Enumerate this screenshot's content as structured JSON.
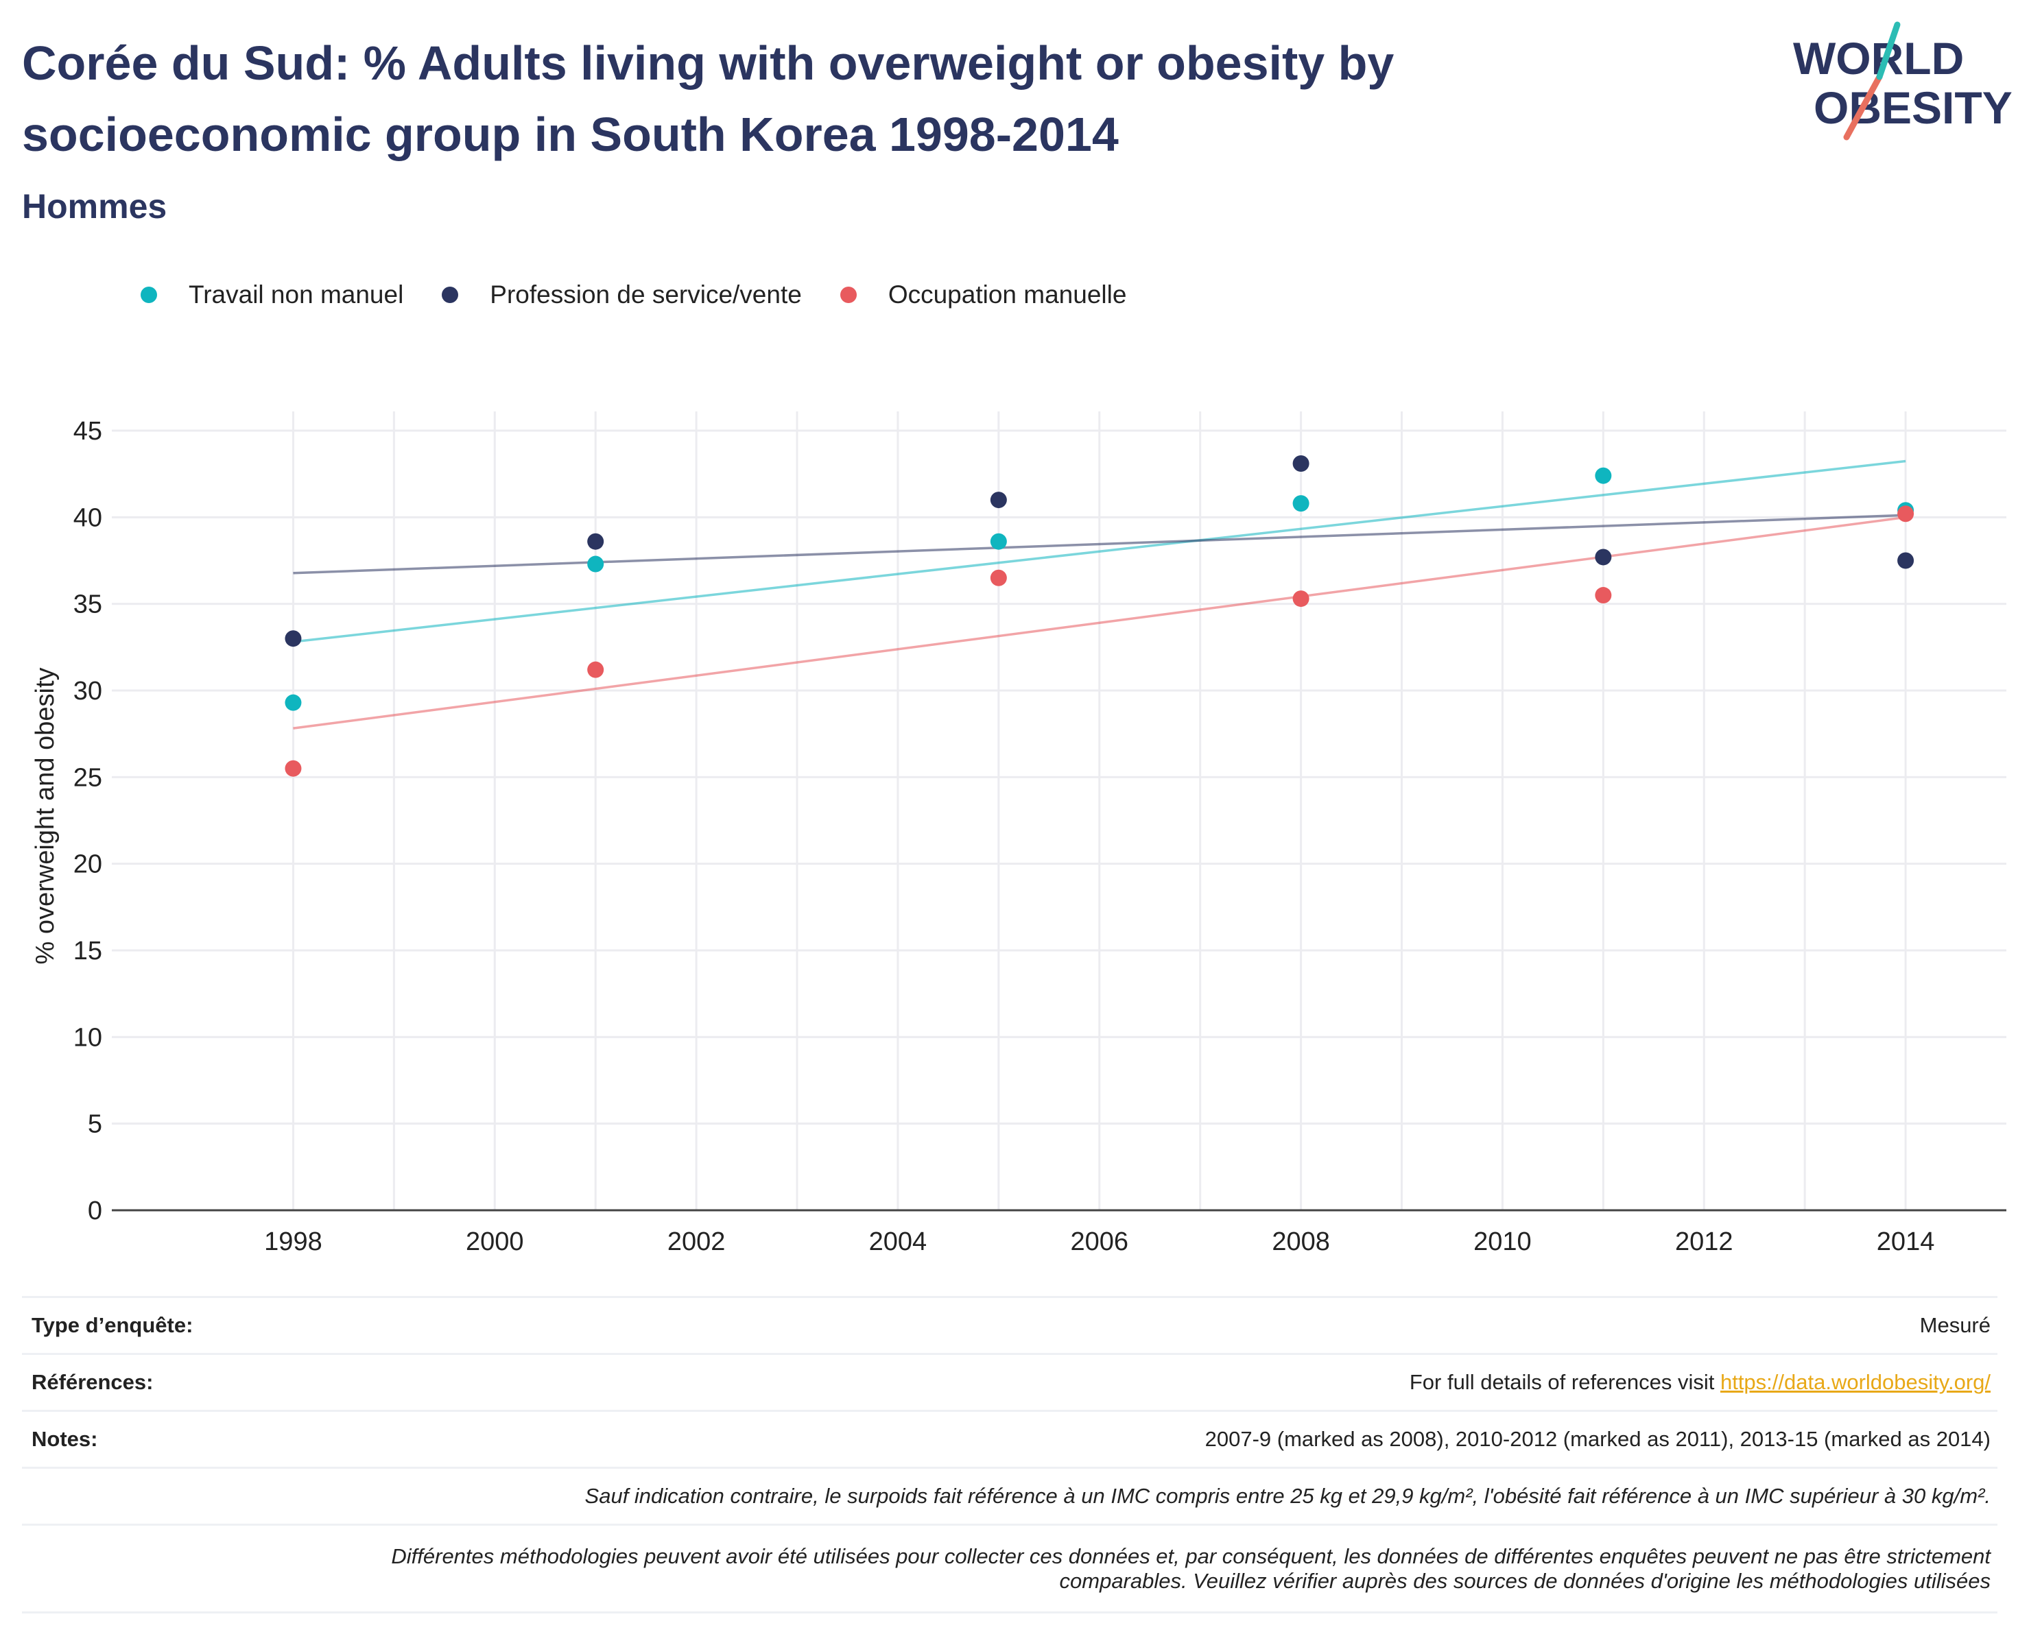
{
  "title": "Corée du Sud: % Adults living with overweight or obesity by socioeconomic group in South Korea 1998-2014",
  "subtitle": "Hommes",
  "logo": {
    "line1": "WORLD",
    "line2": "OBESITY"
  },
  "colors": {
    "teal": "#0fb5bf",
    "navy": "#2b3560",
    "red": "#e85a5e",
    "title": "#2b3560",
    "link": "#e8a817"
  },
  "legend": [
    {
      "label": "Travail non manuel",
      "color": "#0fb5bf"
    },
    {
      "label": "Profession de service/vente",
      "color": "#2b3560"
    },
    {
      "label": "Occupation manuelle",
      "color": "#e85a5e"
    }
  ],
  "chart_data": {
    "type": "scatter",
    "title": "",
    "xlabel": "",
    "ylabel": "% overweight and obesity",
    "xlim": [
      1996.2,
      2015
    ],
    "ylim": [
      0,
      45
    ],
    "xticks": [
      1998,
      2000,
      2002,
      2004,
      2006,
      2008,
      2010,
      2012,
      2014
    ],
    "yticks": [
      0,
      5,
      10,
      15,
      20,
      25,
      30,
      35,
      40,
      45
    ],
    "grid": true,
    "legend_position": "top-left",
    "trendlines": true,
    "series": [
      {
        "name": "Travail non manuel",
        "color": "#0fb5bf",
        "x": [
          1998,
          2001,
          2005,
          2008,
          2011,
          2014
        ],
        "y": [
          29.3,
          37.3,
          38.6,
          40.8,
          42.4,
          40.4
        ]
      },
      {
        "name": "Profession de service/vente",
        "color": "#2b3560",
        "x": [
          1998,
          2001,
          2005,
          2008,
          2011,
          2014
        ],
        "y": [
          33.0,
          38.6,
          41.0,
          43.1,
          37.7,
          37.5
        ]
      },
      {
        "name": "Occupation manuelle",
        "color": "#e85a5e",
        "x": [
          1998,
          2001,
          2005,
          2008,
          2011,
          2014
        ],
        "y": [
          25.5,
          31.2,
          36.5,
          35.3,
          35.5,
          40.2
        ]
      }
    ]
  },
  "meta": {
    "survey_label": "Type d’enquête:",
    "survey_value": "Mesuré",
    "refs_label": "Références:",
    "refs_text": "For full details of references visit ",
    "refs_link": "https://data.worldobesity.org/",
    "notes_label": "Notes:",
    "notes_value": "2007-9 (marked as 2008), 2010-2012 (marked as 2011), 2013-15 (marked as 2014)",
    "bmi_note": "Sauf indication contraire, le surpoids fait référence à un IMC compris entre 25 kg et 29,9 kg/m², l'obésité fait référence à un IMC supérieur à 30 kg/m².",
    "method_note_1": "Différentes méthodologies peuvent avoir été utilisées pour collecter ces données et, par conséquent, les données de différentes enquêtes peuvent ne pas être strictement",
    "method_note_2": "comparables. Veuillez vérifier auprès des sources de données d'origine les méthodologies utilisées"
  }
}
